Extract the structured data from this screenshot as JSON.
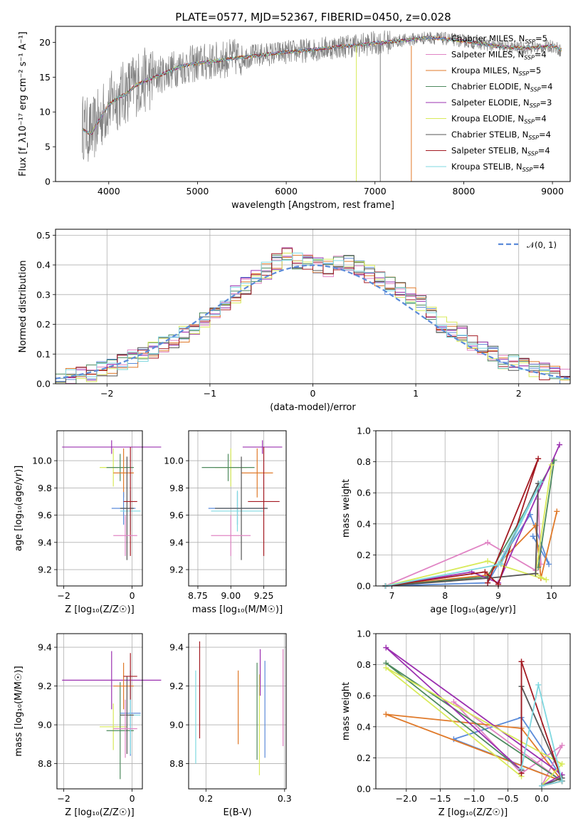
{
  "figure": {
    "title": "PLATE=0577, MJD=52367, FIBERID=0450, z=0.028",
    "series_colors": [
      "#5b8bd9",
      "#e084c4",
      "#e07a2a",
      "#4e8a5e",
      "#9b30b0",
      "#d8ea5a",
      "#555555",
      "#a31a22",
      "#7fd8e0"
    ]
  },
  "chart_data": [
    {
      "id": "spectrum",
      "type": "line",
      "title": "PLATE=0577, MJD=52367, FIBERID=0450, z=0.028",
      "xlabel": "wavelength [Angstrom, rest frame]",
      "ylabel": "Flux [f_λ10⁻¹⁷ erg cm⁻² s⁻¹ A⁻¹]",
      "xlim": [
        3400,
        9200
      ],
      "ylim": [
        0,
        22.3
      ],
      "xticks": [
        "4000",
        "5000",
        "6000",
        "7000",
        "8000",
        "9000"
      ],
      "yticks": [
        "0",
        "5",
        "10",
        "15",
        "20"
      ],
      "grid": false,
      "legend_position": "upper-right",
      "data_trace": {
        "color": "#808080",
        "x": [
          3700,
          3800,
          3900,
          4000,
          4100,
          4200,
          4300,
          4400,
          4600,
          4800,
          5000,
          5200,
          5400,
          5600,
          5800,
          6000,
          6200,
          6400,
          6600,
          6800,
          7000,
          7200,
          7400,
          7600,
          7800,
          8000,
          8200,
          8400,
          8600,
          8800,
          9000,
          9100
        ],
        "y": [
          8,
          7,
          9,
          11,
          12,
          13,
          14,
          14.5,
          15.5,
          16.5,
          17,
          17.3,
          17.8,
          18,
          18.3,
          18.6,
          18.8,
          19.1,
          19.4,
          19.6,
          19.9,
          20.1,
          20.4,
          20.7,
          20.5,
          20.2,
          19.8,
          19.4,
          19.2,
          19.2,
          19.5,
          18.8
        ]
      },
      "model_x": [
        3700,
        3800,
        3900,
        4000,
        4100,
        4200,
        4300,
        4400,
        4600,
        4800,
        5000,
        5200,
        5400,
        5600,
        5800,
        6000,
        6200,
        6400,
        6600,
        6800,
        7000,
        7200,
        7400,
        7600,
        7800,
        8000,
        8200,
        8400,
        8600,
        8800,
        9000,
        9100
      ],
      "model_y": [
        7.5,
        6.8,
        9,
        11,
        12,
        12.6,
        13.8,
        14.4,
        15.4,
        16.5,
        17,
        17.3,
        17.7,
        18,
        18.3,
        18.6,
        18.8,
        19.1,
        19.4,
        19.6,
        19.9,
        20.1,
        20.4,
        20.7,
        20.5,
        20.2,
        19.8,
        19.4,
        19.2,
        19.2,
        19.5,
        18.9
      ],
      "series": [
        {
          "name": "Chabrier MILES, N_SSP=5",
          "color": "#5b8bd9"
        },
        {
          "name": "Salpeter MILES, N_SSP=4",
          "color": "#e084c4"
        },
        {
          "name": "Kroupa MILES, N_SSP=5",
          "color": "#e07a2a"
        },
        {
          "name": "Chabrier ELODIE, N_SSP=4",
          "color": "#4e8a5e"
        },
        {
          "name": "Salpeter ELODIE, N_SSP=3",
          "color": "#9b30b0"
        },
        {
          "name": "Kroupa ELODIE, N_SSP=4",
          "color": "#d8ea5a"
        },
        {
          "name": "Chabrier STELIB, N_SSP=4",
          "color": "#555555"
        },
        {
          "name": "Salpeter STELIB, N_SSP=4",
          "color": "#a31a22"
        },
        {
          "name": "Kroupa STELIB, N_SSP=4",
          "color": "#7fd8e0"
        }
      ]
    },
    {
      "id": "residual-hist",
      "type": "histogram",
      "xlabel": "(data-model)/error",
      "ylabel": "Normed distribution",
      "xlim": [
        -2.5,
        2.5
      ],
      "ylim": [
        0,
        0.52
      ],
      "xticks": [
        "−2",
        "−1",
        "0",
        "1",
        "2"
      ],
      "yticks": [
        "0.0",
        "0.1",
        "0.2",
        "0.3",
        "0.4",
        "0.5"
      ],
      "grid": true,
      "legend_position": "upper-right",
      "legend": "𝒩(0, 1)",
      "normal_curve_color": "#5b8bd9",
      "bin_edges": [
        -2.5,
        -2.4,
        -2.3,
        -2.2,
        -2.1,
        -2.0,
        -1.9,
        -1.8,
        -1.7,
        -1.6,
        -1.5,
        -1.4,
        -1.3,
        -1.2,
        -1.1,
        -1.0,
        -0.9,
        -0.8,
        -0.7,
        -0.6,
        -0.5,
        -0.4,
        -0.3,
        -0.2,
        -0.1,
        0.0,
        0.1,
        0.2,
        0.3,
        0.4,
        0.5,
        0.6,
        0.7,
        0.8,
        0.9,
        1.0,
        1.1,
        1.2,
        1.3,
        1.4,
        1.5,
        1.6,
        1.7,
        1.8,
        1.9,
        2.0,
        2.1,
        2.2,
        2.3,
        2.4,
        2.5
      ],
      "base_density": [
        0.018,
        0.022,
        0.028,
        0.035,
        0.045,
        0.055,
        0.07,
        0.085,
        0.1,
        0.115,
        0.13,
        0.15,
        0.17,
        0.19,
        0.215,
        0.245,
        0.27,
        0.3,
        0.33,
        0.36,
        0.38,
        0.41,
        0.43,
        0.415,
        0.405,
        0.4,
        0.39,
        0.4,
        0.405,
        0.385,
        0.37,
        0.35,
        0.33,
        0.32,
        0.3,
        0.27,
        0.235,
        0.2,
        0.185,
        0.165,
        0.14,
        0.12,
        0.1,
        0.08,
        0.07,
        0.06,
        0.05,
        0.04,
        0.03,
        0.022
      ]
    },
    {
      "id": "age-vs-z",
      "type": "errorbar",
      "xlabel": "Z [log₁₀(Z/Z☉)]",
      "ylabel": "age  [log₁₀(age/yr)]",
      "xlim": [
        -2.2,
        0.3
      ],
      "ylim": [
        9.08,
        10.22
      ],
      "xticks": [
        "−2",
        "0"
      ],
      "yticks": [
        "9.2",
        "9.4",
        "9.6",
        "9.8",
        "10.0"
      ],
      "grid": true,
      "points": [
        {
          "x": -0.6,
          "xerr": 1.45,
          "y": 10.1,
          "yerr": 0.05,
          "c": 4
        },
        {
          "x": -0.55,
          "xerr": 0.4,
          "y": 9.95,
          "yerr": 0.14,
          "c": 5
        },
        {
          "x": -0.35,
          "xerr": 0.4,
          "y": 9.95,
          "yerr": 0.1,
          "c": 3
        },
        {
          "x": -0.25,
          "xerr": 0.3,
          "y": 9.91,
          "yerr": 0.18,
          "c": 2
        },
        {
          "x": -0.25,
          "xerr": 0.35,
          "y": 9.65,
          "yerr": 0.12,
          "c": 0
        },
        {
          "x": -0.05,
          "xerr": 0.3,
          "y": 9.63,
          "yerr": 0.15,
          "c": 8
        },
        {
          "x": -0.15,
          "xerr": 0.2,
          "y": 9.65,
          "yerr": 0.38,
          "c": 6
        },
        {
          "x": -0.05,
          "xerr": 0.2,
          "y": 9.7,
          "yerr": 0.4,
          "c": 7
        },
        {
          "x": -0.2,
          "xerr": 0.35,
          "y": 9.45,
          "yerr": 0.15,
          "c": 1
        }
      ]
    },
    {
      "id": "age-vs-mass",
      "type": "errorbar",
      "xlabel": "mass [log₁₀(M/M☉)]",
      "ylabel": "",
      "xlim": [
        8.68,
        9.42
      ],
      "ylim": [
        9.08,
        10.22
      ],
      "xticks": [
        "8.75",
        "9.00",
        "9.25"
      ],
      "yticks": [
        "9.2",
        "9.4",
        "9.6",
        "9.8",
        "10.0"
      ],
      "grid": true,
      "points": [
        {
          "x": 9.24,
          "xerr": 0.15,
          "y": 10.1,
          "yerr": 0.05,
          "c": 4
        },
        {
          "x": 9.0,
          "xerr": 0.12,
          "y": 9.95,
          "yerr": 0.14,
          "c": 5
        },
        {
          "x": 8.98,
          "xerr": 0.2,
          "y": 9.95,
          "yerr": 0.1,
          "c": 3
        },
        {
          "x": 9.2,
          "xerr": 0.12,
          "y": 9.91,
          "yerr": 0.18,
          "c": 2
        },
        {
          "x": 9.05,
          "xerr": 0.22,
          "y": 9.65,
          "yerr": 0.12,
          "c": 0
        },
        {
          "x": 9.05,
          "xerr": 0.2,
          "y": 9.63,
          "yerr": 0.15,
          "c": 8
        },
        {
          "x": 9.08,
          "xerr": 0.2,
          "y": 9.65,
          "yerr": 0.38,
          "c": 6
        },
        {
          "x": 9.25,
          "xerr": 0.12,
          "y": 9.7,
          "yerr": 0.4,
          "c": 7
        },
        {
          "x": 9.0,
          "xerr": 0.15,
          "y": 9.45,
          "yerr": 0.15,
          "c": 1
        }
      ]
    },
    {
      "id": "mass-weight-vs-age",
      "type": "line",
      "xlabel": "age  [log₁₀(age/yr)]",
      "ylabel": "mass weight",
      "xlim": [
        6.7,
        10.35
      ],
      "ylim": [
        0,
        1.0
      ],
      "xticks": [
        "7",
        "8",
        "9",
        "10"
      ],
      "yticks": [
        "0.0",
        "0.2",
        "0.4",
        "0.6",
        "0.8",
        "1.0"
      ],
      "grid": true,
      "series": [
        {
          "c": 0,
          "x": [
            6.88,
            8.8,
            9.0,
            9.6,
            9.95,
            9.65
          ],
          "y": [
            0.0,
            0.02,
            0.14,
            0.46,
            0.14,
            0.32
          ]
        },
        {
          "c": 1,
          "x": [
            6.88,
            8.8,
            9.7,
            9.75,
            9.8
          ],
          "y": [
            0.0,
            0.28,
            0.1,
            0.56,
            0.14
          ]
        },
        {
          "c": 2,
          "x": [
            6.88,
            8.8,
            9.7,
            9.8,
            10.1
          ],
          "y": [
            0.0,
            0.07,
            0.39,
            0.05,
            0.48
          ]
        },
        {
          "c": 3,
          "x": [
            6.88,
            8.8,
            10.05,
            9.75
          ],
          "y": [
            0.0,
            0.06,
            0.81,
            0.12
          ]
        },
        {
          "c": 4,
          "x": [
            6.88,
            8.5,
            9.0,
            10.15
          ],
          "y": [
            0.0,
            0.09,
            0.02,
            0.91
          ]
        },
        {
          "c": 5,
          "x": [
            6.88,
            8.8,
            9.9,
            9.7,
            10.0
          ],
          "y": [
            0.0,
            0.16,
            0.04,
            0.08,
            0.78
          ]
        },
        {
          "c": 6,
          "x": [
            6.88,
            8.8,
            9.7,
            9.75,
            9.05
          ],
          "y": [
            0.0,
            0.05,
            0.08,
            0.66,
            0.14
          ]
        },
        {
          "c": 7,
          "x": [
            6.88,
            8.75,
            9.0,
            9.75,
            8.8
          ],
          "y": [
            0.0,
            0.09,
            0.01,
            0.82,
            0.02
          ]
        },
        {
          "c": 8,
          "x": [
            6.88,
            9.05,
            9.8,
            9.0
          ],
          "y": [
            0.0,
            0.14,
            0.67,
            0.14
          ]
        }
      ]
    },
    {
      "id": "mass-vs-z",
      "type": "errorbar",
      "xlabel": "Z [log₁₀(Z/Z☉)]",
      "ylabel": "mass [log₁₀(M/M☉)]",
      "xlim": [
        -2.2,
        0.3
      ],
      "ylim": [
        8.67,
        9.47
      ],
      "xticks": [
        "−2",
        "0"
      ],
      "yticks": [
        "8.8",
        "9.0",
        "9.2",
        "9.4"
      ],
      "grid": true,
      "points": [
        {
          "x": -0.6,
          "xerr": 1.45,
          "y": 9.23,
          "yerr": 0.15,
          "c": 4
        },
        {
          "x": -0.55,
          "xerr": 0.4,
          "y": 8.99,
          "yerr": 0.12,
          "c": 5
        },
        {
          "x": -0.35,
          "xerr": 0.4,
          "y": 8.97,
          "yerr": 0.25,
          "c": 3
        },
        {
          "x": -0.25,
          "xerr": 0.3,
          "y": 9.2,
          "yerr": 0.12,
          "c": 2
        },
        {
          "x": -0.05,
          "xerr": 0.3,
          "y": 9.06,
          "yerr": 0.22,
          "c": 0
        },
        {
          "x": -0.05,
          "xerr": 0.3,
          "y": 9.05,
          "yerr": 0.2,
          "c": 8
        },
        {
          "x": -0.15,
          "xerr": 0.2,
          "y": 9.05,
          "yerr": 0.2,
          "c": 6
        },
        {
          "x": -0.05,
          "xerr": 0.2,
          "y": 9.25,
          "yerr": 0.12,
          "c": 7
        },
        {
          "x": -0.2,
          "xerr": 0.35,
          "y": 8.98,
          "yerr": 0.15,
          "c": 1
        }
      ]
    },
    {
      "id": "mass-vs-ebv",
      "type": "errorbar",
      "xlabel": "E(B-V)",
      "ylabel": "",
      "xlim": [
        0.178,
        0.302
      ],
      "ylim": [
        8.67,
        9.47
      ],
      "xticks": [
        "0.2",
        "0.3"
      ],
      "yticks": [
        "8.8",
        "9.0",
        "9.2",
        "9.4"
      ],
      "grid": true,
      "points": [
        {
          "x": 0.187,
          "y": 9.04,
          "yerr": 0.24,
          "c": 8
        },
        {
          "x": 0.192,
          "y": 9.18,
          "yerr": 0.25,
          "c": 7
        },
        {
          "x": 0.241,
          "y": 9.09,
          "yerr": 0.19,
          "c": 2
        },
        {
          "x": 0.265,
          "y": 9.07,
          "yerr": 0.25,
          "c": 3
        },
        {
          "x": 0.268,
          "y": 9.0,
          "yerr": 0.26,
          "c": 5
        },
        {
          "x": 0.269,
          "y": 9.27,
          "yerr": 0.12,
          "c": 4
        },
        {
          "x": 0.275,
          "y": 9.08,
          "yerr": 0.25,
          "c": 0
        },
        {
          "x": 0.298,
          "y": 9.14,
          "yerr": 0.25,
          "c": 1
        }
      ]
    },
    {
      "id": "mass-weight-vs-z",
      "type": "line",
      "xlabel": "Z [log₁₀(Z/Z☉)]",
      "ylabel": "mass weight",
      "xlim": [
        -2.45,
        0.42
      ],
      "ylim": [
        0,
        1.0
      ],
      "xticks": [
        "−2.0",
        "−1.5",
        "−1.0",
        "−0.5",
        "0.0"
      ],
      "yticks": [
        "0.0",
        "0.2",
        "0.4",
        "0.6",
        "0.8",
        "1.0"
      ],
      "grid": true,
      "series": [
        {
          "c": 0,
          "x": [
            0.0,
            0.3,
            -0.3,
            -1.3,
            0.3
          ],
          "y": [
            0.02,
            0.07,
            0.46,
            0.32,
            0.05
          ]
        },
        {
          "c": 1,
          "x": [
            0.0,
            0.3,
            -0.3,
            -1.3,
            0.3
          ],
          "y": [
            0.02,
            0.28,
            0.1,
            0.56,
            0.05
          ]
        },
        {
          "c": 2,
          "x": [
            0.0,
            0.3,
            -0.3,
            -2.3,
            0.3
          ],
          "y": [
            0.02,
            0.05,
            0.39,
            0.48,
            0.05
          ]
        },
        {
          "c": 3,
          "x": [
            0.0,
            0.3,
            -2.3,
            -0.3
          ],
          "y": [
            0.02,
            0.05,
            0.81,
            0.12
          ]
        },
        {
          "c": 4,
          "x": [
            0.0,
            0.3,
            -2.3,
            -0.3
          ],
          "y": [
            0.02,
            0.09,
            0.91,
            0.12
          ]
        },
        {
          "c": 5,
          "x": [
            0.0,
            0.3,
            -2.3,
            -0.3
          ],
          "y": [
            0.02,
            0.16,
            0.78,
            0.08
          ]
        },
        {
          "c": 6,
          "x": [
            0.0,
            0.3,
            -0.3,
            -0.3
          ],
          "y": [
            0.02,
            0.07,
            0.66,
            0.12
          ]
        },
        {
          "c": 7,
          "x": [
            0.0,
            0.3,
            -0.3,
            -0.3
          ],
          "y": [
            0.02,
            0.05,
            0.82,
            0.1
          ]
        },
        {
          "c": 8,
          "x": [
            0.0,
            0.3,
            -0.05,
            -0.3
          ],
          "y": [
            0.02,
            0.05,
            0.67,
            0.13
          ]
        }
      ]
    }
  ]
}
